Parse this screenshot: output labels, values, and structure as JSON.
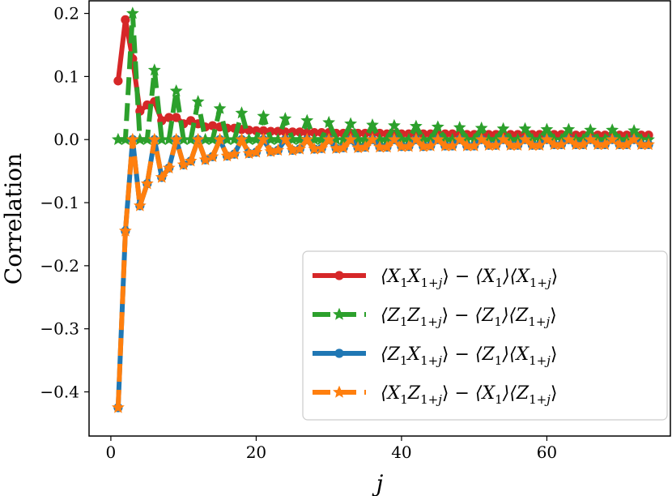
{
  "chart_data": {
    "type": "line",
    "title": "",
    "xlabel": "j",
    "ylabel": "Correlation",
    "xlim": [
      -3,
      77
    ],
    "ylim": [
      -0.47,
      0.22
    ],
    "xticks": [
      0,
      20,
      40,
      60
    ],
    "xtick_labels": [
      "0",
      "20",
      "40",
      "60"
    ],
    "yticks": [
      0.2,
      0.1,
      0.0,
      -0.1,
      -0.2,
      -0.3,
      -0.4
    ],
    "ytick_labels": [
      "0.2",
      "0.1",
      "0.0",
      "−0.1",
      "−0.2",
      "−0.3",
      "−0.4"
    ],
    "grid": false,
    "legend_position": "bottom-right",
    "x": [
      1,
      2,
      3,
      4,
      5,
      6,
      7,
      8,
      9,
      10,
      11,
      12,
      13,
      14,
      15,
      16,
      17,
      18,
      19,
      20,
      21,
      22,
      23,
      24,
      25,
      26,
      27,
      28,
      29,
      30,
      31,
      32,
      33,
      34,
      35,
      36,
      37,
      38,
      39,
      40,
      41,
      42,
      43,
      44,
      45,
      46,
      47,
      48,
      49,
      50,
      51,
      52,
      53,
      54,
      55,
      56,
      57,
      58,
      59,
      60,
      61,
      62,
      63,
      64,
      65,
      66,
      67,
      68,
      69,
      70,
      71,
      72,
      73,
      74
    ],
    "series": [
      {
        "name": "⟨X₁X₁₊ⱼ⟩ − ⟨X₁⟩⟨X₁₊ⱼ⟩",
        "color": "#d62728",
        "linestyle": "solid",
        "marker": "circle",
        "values": [
          0.093,
          0.19,
          0.128,
          0.045,
          0.055,
          0.06,
          0.03,
          0.035,
          0.035,
          0.025,
          0.03,
          0.025,
          0.02,
          0.022,
          0.02,
          0.018,
          0.018,
          0.016,
          0.015,
          0.014,
          0.014,
          0.013,
          0.013,
          0.012,
          0.012,
          0.012,
          0.011,
          0.011,
          0.011,
          0.011,
          0.01,
          0.01,
          0.01,
          0.01,
          0.01,
          0.01,
          0.01,
          0.009,
          0.009,
          0.009,
          0.009,
          0.009,
          0.009,
          0.009,
          0.009,
          0.009,
          0.009,
          0.008,
          0.008,
          0.008,
          0.008,
          0.008,
          0.008,
          0.008,
          0.008,
          0.008,
          0.008,
          0.008,
          0.008,
          0.008,
          0.008,
          0.008,
          0.007,
          0.007,
          0.007,
          0.007,
          0.007,
          0.007,
          0.007,
          0.007,
          0.007,
          0.007,
          0.007,
          0.007
        ]
      },
      {
        "name": "⟨Z₁Z₁₊ⱼ⟩ − ⟨Z₁⟩⟨Z₁₊ⱼ⟩",
        "color": "#2ca02c",
        "linestyle": "dashed",
        "marker": "star",
        "values": [
          0.0,
          0.0,
          0.2,
          0.0,
          0.0,
          0.11,
          0.0,
          0.0,
          0.077,
          0.0,
          0.0,
          0.06,
          0.0,
          0.0,
          0.049,
          0.0,
          0.0,
          0.042,
          0.0,
          0.0,
          0.037,
          0.0,
          0.0,
          0.033,
          0.0,
          0.0,
          0.03,
          0.0,
          0.0,
          0.027,
          0.0,
          0.0,
          0.025,
          0.0,
          0.0,
          0.023,
          0.0,
          0.0,
          0.022,
          0.0,
          0.0,
          0.021,
          0.0,
          0.0,
          0.02,
          0.0,
          0.0,
          0.019,
          0.0,
          0.0,
          0.018,
          0.0,
          0.0,
          0.017,
          0.0,
          0.0,
          0.017,
          0.0,
          0.0,
          0.016,
          0.0,
          0.0,
          0.016,
          0.0,
          0.0,
          0.015,
          0.0,
          0.0,
          0.015,
          0.0,
          0.0,
          0.014,
          0.0,
          0.0
        ]
      },
      {
        "name": "⟨Z₁X₁₊ⱼ⟩ − ⟨Z₁⟩⟨X₁₊ⱼ⟩",
        "color": "#1f77b4",
        "linestyle": "solid",
        "marker": "circle",
        "values": [
          -0.425,
          -0.145,
          0.0,
          -0.105,
          -0.07,
          0.0,
          -0.06,
          -0.045,
          0.0,
          -0.04,
          -0.034,
          0.0,
          -0.032,
          -0.027,
          0.0,
          -0.026,
          -0.023,
          0.0,
          -0.022,
          -0.02,
          0.0,
          -0.019,
          -0.017,
          0.0,
          -0.017,
          -0.015,
          0.0,
          -0.015,
          -0.014,
          0.0,
          -0.014,
          -0.013,
          0.0,
          -0.013,
          -0.012,
          0.0,
          -0.012,
          -0.012,
          0.0,
          -0.011,
          -0.011,
          0.0,
          -0.011,
          -0.01,
          0.0,
          -0.01,
          -0.01,
          0.0,
          -0.01,
          -0.01,
          0.0,
          -0.009,
          -0.009,
          0.0,
          -0.009,
          -0.009,
          0.0,
          -0.009,
          -0.009,
          0.0,
          -0.008,
          -0.008,
          0.0,
          -0.008,
          -0.008,
          0.0,
          -0.008,
          -0.008,
          0.0,
          -0.008,
          -0.008,
          0.0,
          -0.008,
          -0.008
        ]
      },
      {
        "name": "⟨X₁Z₁₊ⱼ⟩ − ⟨X₁⟩⟨Z₁₊ⱼ⟩",
        "color": "#ff7f0e",
        "linestyle": "dashed",
        "marker": "star",
        "values": [
          -0.425,
          -0.145,
          0.0,
          -0.105,
          -0.07,
          0.0,
          -0.06,
          -0.045,
          0.0,
          -0.04,
          -0.034,
          0.0,
          -0.032,
          -0.027,
          0.0,
          -0.026,
          -0.023,
          0.0,
          -0.022,
          -0.02,
          0.0,
          -0.019,
          -0.017,
          0.0,
          -0.017,
          -0.015,
          0.0,
          -0.015,
          -0.014,
          0.0,
          -0.014,
          -0.013,
          0.0,
          -0.013,
          -0.012,
          0.0,
          -0.012,
          -0.012,
          0.0,
          -0.011,
          -0.011,
          0.0,
          -0.011,
          -0.01,
          0.0,
          -0.01,
          -0.01,
          0.0,
          -0.01,
          -0.01,
          0.0,
          -0.009,
          -0.009,
          0.0,
          -0.009,
          -0.009,
          0.0,
          -0.009,
          -0.009,
          0.0,
          -0.008,
          -0.008,
          0.0,
          -0.008,
          -0.008,
          0.0,
          -0.008,
          -0.008,
          0.0,
          -0.008,
          -0.008,
          0.0,
          -0.008,
          -0.008
        ]
      }
    ],
    "legend": [
      {
        "lhs": [
          [
            "⟨X",
            ""
          ],
          [
            "1",
            "sub"
          ],
          [
            "X",
            ""
          ],
          [
            "1+",
            "subi"
          ],
          [
            "j",
            "subj"
          ],
          [
            "⟩",
            ""
          ]
        ],
        "rhs": [
          [
            "⟨X",
            ""
          ],
          [
            "1",
            "sub"
          ],
          [
            "⟩⟨X",
            ""
          ],
          [
            "1+",
            "subi"
          ],
          [
            "j",
            "subj"
          ],
          [
            "⟩",
            ""
          ]
        ]
      },
      {
        "lhs": [
          [
            "⟨Z",
            ""
          ],
          [
            "1",
            "sub"
          ],
          [
            "Z",
            ""
          ],
          [
            "1+",
            "subi"
          ],
          [
            "j",
            "subj"
          ],
          [
            "⟩",
            ""
          ]
        ],
        "rhs": [
          [
            "⟨Z",
            ""
          ],
          [
            "1",
            "sub"
          ],
          [
            "⟩⟨Z",
            ""
          ],
          [
            "1+",
            "subi"
          ],
          [
            "j",
            "subj"
          ],
          [
            "⟩",
            ""
          ]
        ]
      },
      {
        "lhs": [
          [
            "⟨Z",
            ""
          ],
          [
            "1",
            "sub"
          ],
          [
            "X",
            ""
          ],
          [
            "1+",
            "subi"
          ],
          [
            "j",
            "subj"
          ],
          [
            "⟩",
            ""
          ]
        ],
        "rhs": [
          [
            "⟨Z",
            ""
          ],
          [
            "1",
            "sub"
          ],
          [
            "⟩⟨X",
            ""
          ],
          [
            "1+",
            "subi"
          ],
          [
            "j",
            "subj"
          ],
          [
            "⟩",
            ""
          ]
        ]
      },
      {
        "lhs": [
          [
            "⟨X",
            ""
          ],
          [
            "1",
            "sub"
          ],
          [
            "Z",
            ""
          ],
          [
            "1+",
            "subi"
          ],
          [
            "j",
            "subj"
          ],
          [
            "⟩",
            ""
          ]
        ],
        "rhs": [
          [
            "⟨X",
            ""
          ],
          [
            "1",
            "sub"
          ],
          [
            "⟩⟨Z",
            ""
          ],
          [
            "1+",
            "subi"
          ],
          [
            "j",
            "subj"
          ],
          [
            "⟩",
            ""
          ]
        ]
      }
    ]
  }
}
